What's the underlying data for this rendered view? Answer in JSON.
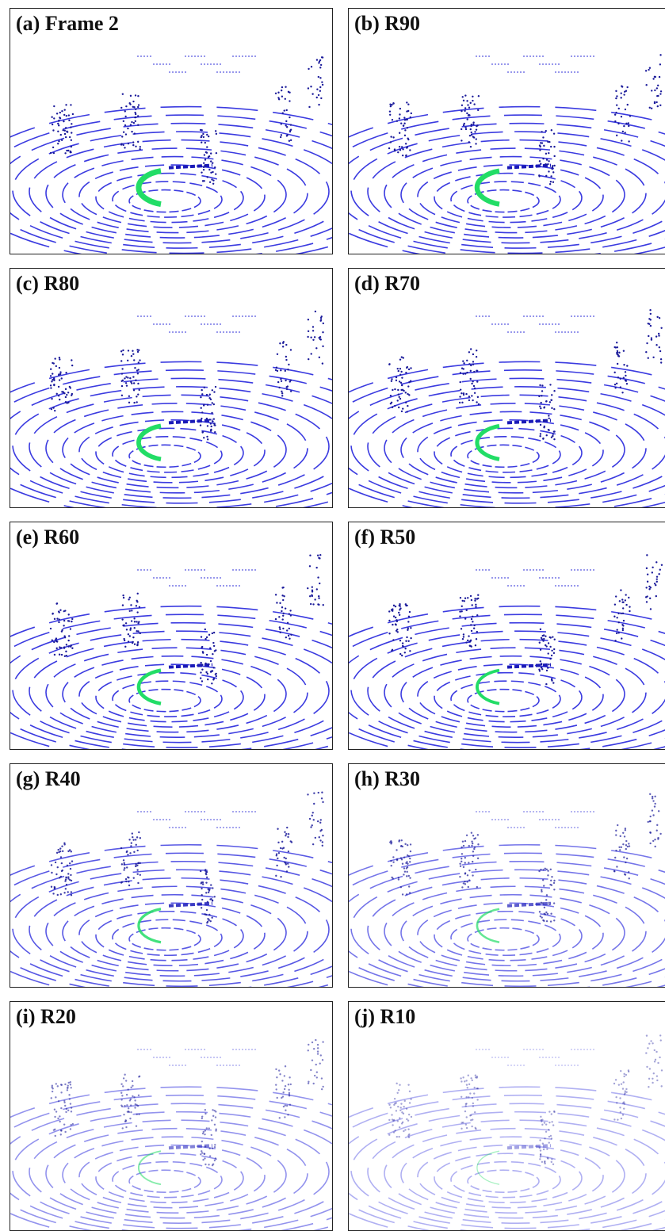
{
  "panels": [
    {
      "label": "(a) Frame 2"
    },
    {
      "label": "(b) R90"
    },
    {
      "label": "(c) R80"
    },
    {
      "label": "(d) R70"
    },
    {
      "label": "(e) R60"
    },
    {
      "label": "(f) R50"
    },
    {
      "label": "(g) R40"
    },
    {
      "label": "(h) R30"
    },
    {
      "label": "(i) R20"
    },
    {
      "label": "(j) R10"
    }
  ]
}
